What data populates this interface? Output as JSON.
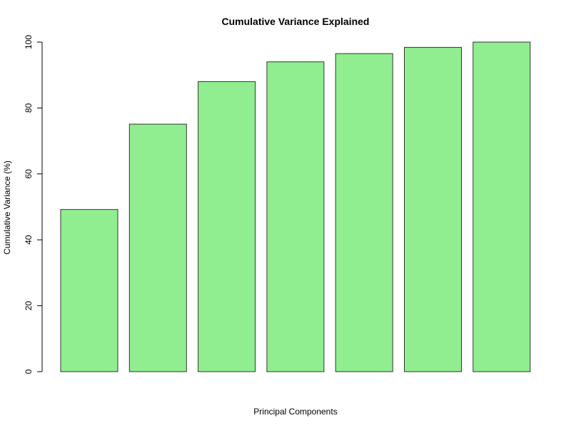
{
  "chart_data": {
    "type": "bar",
    "title": "Cumulative Variance Explained",
    "xlabel": "Principal Components",
    "ylabel": "Cumulative Variance (%)",
    "categories": [
      "",
      "",
      "",
      "",
      "",
      "",
      ""
    ],
    "values": [
      49.2,
      75.1,
      88.0,
      94.0,
      96.5,
      98.4,
      100.0
    ],
    "ylim": [
      0,
      100
    ],
    "yticks": [
      0,
      20,
      40,
      60,
      80,
      100
    ],
    "ytick_labels": [
      "0",
      "20",
      "40",
      "60",
      "80",
      "100"
    ],
    "bar_color": "#90ee90",
    "bar_border_color": "#333333",
    "grid": false,
    "legend": "none"
  }
}
